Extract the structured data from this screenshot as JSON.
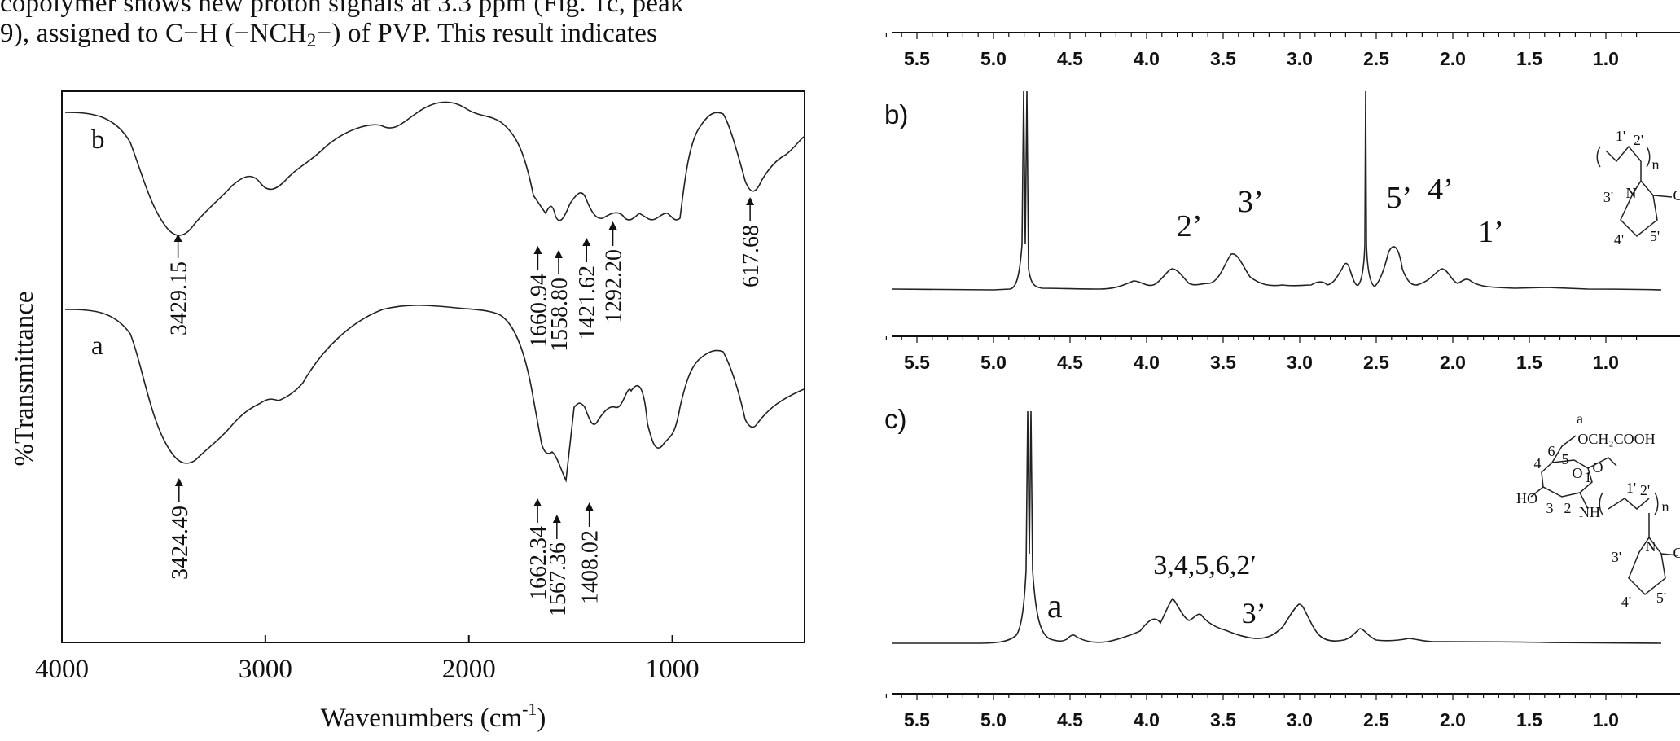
{
  "paper_text": {
    "line1": "copolymer shows new proton signals at 3.3 ppm (Fig. 1c, peak",
    "line2_pre": "9), assigned to C−H (−NCH",
    "line2_sub": "2",
    "line2_post": "−) of PVP. This result indicates"
  },
  "ftir": {
    "ylabel": "%Transmittance",
    "xlabel_pre": "Wavenumbers (cm",
    "xlabel_sup": "-1",
    "xlabel_post": ")",
    "x_ticks": [
      "4000",
      "3000",
      "2000",
      "1000"
    ],
    "curve_b_label": "b",
    "curve_a_label": "a",
    "peaks_b": [
      "3429.15",
      "1660.94",
      "1558.80",
      "1421.62",
      "1292.20",
      "617.68"
    ],
    "peaks_a": [
      "3424.49",
      "1662.34",
      "1567.36",
      "1408.02"
    ]
  },
  "nmr": {
    "axis_ticks": [
      "5.5",
      "5.0",
      "4.5",
      "4.0",
      "3.5",
      "3.0",
      "2.5",
      "2.0",
      "1.5",
      "1.0"
    ],
    "panel_b": {
      "label": "b)",
      "peaks": [
        "2’",
        "3’",
        "5’",
        "4’",
        "1’"
      ],
      "structure": [
        "1'",
        "2'",
        "n",
        "N",
        "O",
        "3'",
        "4'",
        "5'"
      ]
    },
    "panel_c": {
      "label": "c)",
      "peaks": [
        "a",
        "3,4,5,6,2′",
        "3’"
      ],
      "structure": [
        "a",
        "OCH₂COOH",
        "4",
        "6",
        "5",
        "O",
        "1",
        "O",
        "HO",
        "3",
        "2",
        "NH",
        "1'",
        "2'",
        "n",
        "N",
        "O",
        "3'",
        "4'",
        "5'"
      ]
    }
  }
}
